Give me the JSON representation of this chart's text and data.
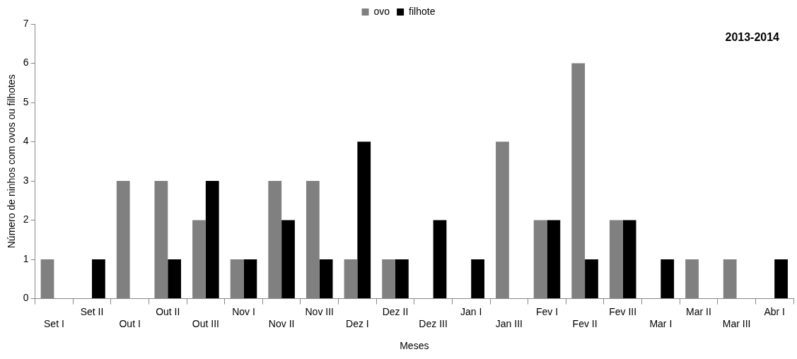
{
  "chart_data": {
    "type": "bar",
    "xlabel": "Meses",
    "ylabel": "Número de ninhos com ovos ou filhotes",
    "annotations": [
      "2013-2014"
    ],
    "categories": [
      "Set I",
      "Set II",
      "Out I",
      "Out II",
      "Out III",
      "Nov I",
      "Nov II",
      "Nov III",
      "Dez I",
      "Dez II",
      "Dez III",
      "Jan I",
      "Jan III",
      "Fev I",
      "Fev II",
      "Fev III",
      "Mar I",
      "Mar II",
      "Mar III",
      "Abr I"
    ],
    "series": [
      {
        "name": "ovo",
        "color": "#808080",
        "values": [
          1,
          0,
          3,
          3,
          2,
          1,
          3,
          3,
          1,
          1,
          0,
          0,
          4,
          2,
          6,
          2,
          0,
          1,
          1,
          0
        ]
      },
      {
        "name": "filhote",
        "color": "#000000",
        "values": [
          0,
          1,
          0,
          1,
          3,
          1,
          2,
          1,
          4,
          1,
          2,
          1,
          0,
          2,
          1,
          2,
          1,
          0,
          0,
          1
        ]
      }
    ],
    "ylim": [
      0,
      7
    ],
    "yticks": [
      0,
      1,
      2,
      3,
      4,
      5,
      6,
      7
    ],
    "grid": false,
    "legend": "top"
  }
}
